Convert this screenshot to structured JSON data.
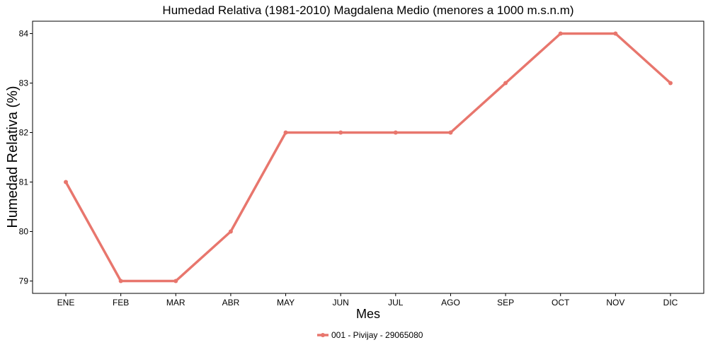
{
  "chart_data": {
    "type": "line",
    "title": "Humedad Relativa (1981-2010) Magdalena Medio (menores a 1000 m.s.n.m)",
    "xlabel": "Mes",
    "ylabel": "Humedad Relativa (%)",
    "categories": [
      "ENE",
      "FEB",
      "MAR",
      "ABR",
      "MAY",
      "JUN",
      "JUL",
      "AGO",
      "SEP",
      "OCT",
      "NOV",
      "DIC"
    ],
    "series": [
      {
        "name": "001 - Pivijay - 29065080",
        "color": "#e8766d",
        "values": [
          81,
          79,
          79,
          80,
          82,
          82,
          82,
          82,
          83,
          84,
          84,
          83
        ]
      }
    ],
    "ylim": [
      78.75,
      84.25
    ],
    "yticks": [
      79,
      80,
      81,
      82,
      83,
      84
    ],
    "grid": false,
    "legend_position": "bottom"
  }
}
